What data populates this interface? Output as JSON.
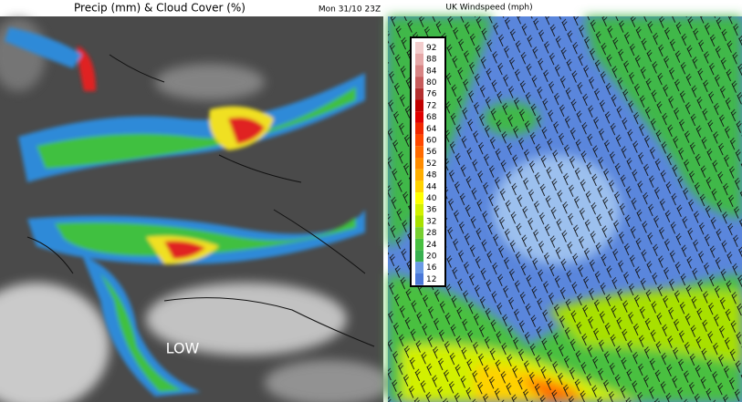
{
  "left_panel": {
    "title": "Precip (mm) & Cloud Cover (%)",
    "timestamp": "Mon 31/10 23Z",
    "label": "LOW"
  },
  "right_panel": {
    "title": "UK Windspeed (mph)",
    "legend": [
      {
        "value": 92,
        "color": "#f2cccc"
      },
      {
        "value": 88,
        "color": "#e6a8a8"
      },
      {
        "value": 84,
        "color": "#d88484"
      },
      {
        "value": 80,
        "color": "#c85c5c"
      },
      {
        "value": 76,
        "color": "#b43030"
      },
      {
        "value": 72,
        "color": "#c00000"
      },
      {
        "value": 68,
        "color": "#e00000"
      },
      {
        "value": 64,
        "color": "#f02800"
      },
      {
        "value": 60,
        "color": "#ff4800"
      },
      {
        "value": 56,
        "color": "#ff6a00"
      },
      {
        "value": 52,
        "color": "#ff8c00"
      },
      {
        "value": 48,
        "color": "#ffae00"
      },
      {
        "value": 44,
        "color": "#ffd200"
      },
      {
        "value": 40,
        "color": "#ffff00"
      },
      {
        "value": 36,
        "color": "#d2f000"
      },
      {
        "value": 32,
        "color": "#a8e000"
      },
      {
        "value": 28,
        "color": "#78d030"
      },
      {
        "value": 24,
        "color": "#48c040"
      },
      {
        "value": 20,
        "color": "#38b050"
      },
      {
        "value": 16,
        "color": "#6a9ae6"
      },
      {
        "value": 12,
        "color": "#4a78d8"
      }
    ]
  }
}
